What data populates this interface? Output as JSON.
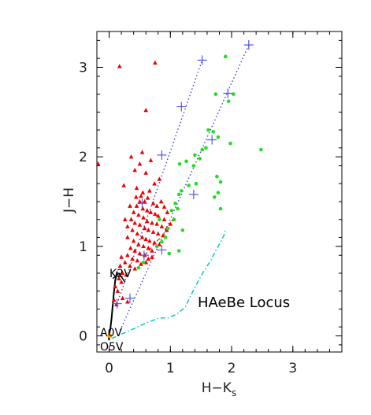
{
  "chart_data": {
    "type": "scatter",
    "xlabel": "H−K",
    "xlabel_sub": "s",
    "ylabel": "J−H",
    "xlim": [
      -0.2,
      3.8
    ],
    "ylim": [
      -0.18,
      3.4
    ],
    "xticks": [
      0,
      1,
      2,
      3
    ],
    "yticks": [
      0,
      1,
      2,
      3
    ],
    "xtick_labels": [
      "0",
      "1",
      "2",
      "3"
    ],
    "ytick_labels": [
      "0",
      "1",
      "2",
      "3"
    ],
    "colors": {
      "red_points": "#ee0000",
      "green_points": "#22dd22",
      "reddening_lines": "#3333cc",
      "plus_markers": "#5555ee",
      "haebe_locus": "#00cccc",
      "dashed_red": "#cc3333",
      "dwarf_track": "#000000",
      "star_marker": "#ff9900"
    },
    "annotations": {
      "k2v": "K2V",
      "a0v": "A0V",
      "o5v": "O5V",
      "haebe_locus": "HAeBe Locus"
    },
    "series": {
      "red_triangles": [
        [
          -0.18,
          1.92
        ],
        [
          0.17,
          3.01
        ],
        [
          0.6,
          2.52
        ],
        [
          0.75,
          3.05
        ],
        [
          0.54,
          2.05
        ],
        [
          0.36,
          2.0
        ],
        [
          0.5,
          1.92
        ],
        [
          0.68,
          1.96
        ],
        [
          0.42,
          1.85
        ],
        [
          0.6,
          1.82
        ],
        [
          0.82,
          1.75
        ],
        [
          0.74,
          1.7
        ],
        [
          0.24,
          1.68
        ],
        [
          0.45,
          1.65
        ],
        [
          0.55,
          1.6
        ],
        [
          0.66,
          1.62
        ],
        [
          0.52,
          1.56
        ],
        [
          0.58,
          1.5
        ],
        [
          0.63,
          1.54
        ],
        [
          0.5,
          1.5
        ],
        [
          0.72,
          1.48
        ],
        [
          0.78,
          1.45
        ],
        [
          0.85,
          1.5
        ],
        [
          0.9,
          1.44
        ],
        [
          0.45,
          1.45
        ],
        [
          0.55,
          1.42
        ],
        [
          0.62,
          1.4
        ],
        [
          0.68,
          1.38
        ],
        [
          0.75,
          1.36
        ],
        [
          0.8,
          1.34
        ],
        [
          0.9,
          1.3
        ],
        [
          0.4,
          1.38
        ],
        [
          0.48,
          1.35
        ],
        [
          0.56,
          1.32
        ],
        [
          0.62,
          1.28
        ],
        [
          0.7,
          1.26
        ],
        [
          0.78,
          1.25
        ],
        [
          0.86,
          1.22
        ],
        [
          0.94,
          1.2
        ],
        [
          0.36,
          1.3
        ],
        [
          0.42,
          1.26
        ],
        [
          0.5,
          1.24
        ],
        [
          0.58,
          1.2
        ],
        [
          0.64,
          1.18
        ],
        [
          0.72,
          1.16
        ],
        [
          0.8,
          1.14
        ],
        [
          0.88,
          1.12
        ],
        [
          0.38,
          1.18
        ],
        [
          0.46,
          1.14
        ],
        [
          0.54,
          1.1
        ],
        [
          0.6,
          1.08
        ],
        [
          0.66,
          1.06
        ],
        [
          0.74,
          1.04
        ],
        [
          0.82,
          1.02
        ],
        [
          0.3,
          1.1
        ],
        [
          0.4,
          1.06
        ],
        [
          0.48,
          1.02
        ],
        [
          0.56,
          1.0
        ],
        [
          0.64,
          0.98
        ],
        [
          0.7,
          0.95
        ],
        [
          0.35,
          0.98
        ],
        [
          0.42,
          0.95
        ],
        [
          0.5,
          0.92
        ],
        [
          0.58,
          0.9
        ],
        [
          0.3,
          0.9
        ],
        [
          0.38,
          0.86
        ],
        [
          0.46,
          0.84
        ],
        [
          0.52,
          0.8
        ],
        [
          0.26,
          0.82
        ],
        [
          0.34,
          0.78
        ],
        [
          0.42,
          0.75
        ],
        [
          0.2,
          0.88
        ],
        [
          0.18,
          0.78
        ],
        [
          0.22,
          0.7
        ],
        [
          0.28,
          0.68
        ],
        [
          0.16,
          0.64
        ],
        [
          0.2,
          0.6
        ],
        [
          0.1,
          0.55
        ],
        [
          0.14,
          0.5
        ],
        [
          0.08,
          0.4
        ],
        [
          0.22,
          0.42
        ],
        [
          0.3,
          0.38
        ],
        [
          0.12,
          0.35
        ],
        [
          0.6,
          0.82
        ],
        [
          0.64,
          0.86
        ],
        [
          0.7,
          0.88
        ],
        [
          0.94,
          1.18
        ],
        [
          1.0,
          1.25
        ],
        [
          1.05,
          1.3
        ],
        [
          0.95,
          1.38
        ],
        [
          0.3,
          1.22
        ],
        [
          0.26,
          1.3
        ],
        [
          0.34,
          1.45
        ],
        [
          0.44,
          1.55
        ]
      ],
      "green_circles": [
        [
          1.9,
          3.12
        ],
        [
          1.74,
          2.7
        ],
        [
          2.03,
          2.7
        ],
        [
          1.95,
          2.62
        ],
        [
          1.62,
          2.3
        ],
        [
          1.7,
          2.28
        ],
        [
          1.78,
          2.22
        ],
        [
          1.98,
          2.15
        ],
        [
          1.58,
          2.1
        ],
        [
          1.52,
          2.08
        ],
        [
          1.4,
          2.02
        ],
        [
          1.48,
          1.98
        ],
        [
          1.38,
          1.9
        ],
        [
          1.26,
          1.95
        ],
        [
          1.15,
          1.92
        ],
        [
          2.48,
          2.08
        ],
        [
          1.76,
          1.78
        ],
        [
          1.82,
          1.72
        ],
        [
          1.3,
          1.68
        ],
        [
          1.42,
          1.7
        ],
        [
          1.18,
          1.62
        ],
        [
          1.14,
          1.58
        ],
        [
          1.78,
          1.6
        ],
        [
          1.72,
          1.55
        ],
        [
          1.08,
          1.48
        ],
        [
          1.02,
          1.4
        ],
        [
          1.12,
          1.42
        ],
        [
          1.06,
          1.3
        ],
        [
          0.82,
          1.3
        ],
        [
          0.96,
          1.2
        ],
        [
          1.2,
          1.18
        ],
        [
          0.92,
          1.1
        ],
        [
          0.86,
          1.05
        ],
        [
          0.78,
          1.0
        ],
        [
          1.82,
          1.42
        ],
        [
          1.14,
          0.95
        ],
        [
          0.98,
          0.92
        ],
        [
          0.56,
          0.82
        ],
        [
          0.48,
          0.76
        ]
      ],
      "reddening_line_left": [
        [
          0.13,
          0.36
        ],
        [
          1.52,
          3.08
        ]
      ],
      "reddening_line_right": [
        [
          0.18,
          0.06
        ],
        [
          2.28,
          3.25
        ]
      ],
      "plus_markers": [
        [
          0.13,
          0.36
        ],
        [
          0.57,
          0.9
        ],
        [
          0.54,
          1.48
        ],
        [
          0.86,
          2.02
        ],
        [
          1.18,
          2.56
        ],
        [
          1.52,
          3.08
        ],
        [
          0.34,
          0.42
        ],
        [
          0.86,
          0.96
        ],
        [
          1.38,
          1.58
        ],
        [
          1.68,
          2.19
        ],
        [
          1.94,
          2.71
        ],
        [
          2.28,
          3.25
        ]
      ],
      "haebe_locus": [
        [
          0.04,
          -0.03
        ],
        [
          0.2,
          0.02
        ],
        [
          0.4,
          0.08
        ],
        [
          0.62,
          0.15
        ],
        [
          0.82,
          0.2
        ],
        [
          0.96,
          0.2
        ],
        [
          1.1,
          0.24
        ],
        [
          1.24,
          0.32
        ],
        [
          1.34,
          0.46
        ],
        [
          1.46,
          0.62
        ],
        [
          1.56,
          0.74
        ],
        [
          1.66,
          0.84
        ],
        [
          1.74,
          0.95
        ],
        [
          1.82,
          1.05
        ],
        [
          1.88,
          1.13
        ],
        [
          1.9,
          1.2
        ]
      ],
      "dashed_red_track": [
        [
          0.58,
          0.9
        ],
        [
          0.66,
          0.96
        ],
        [
          0.78,
          1.06
        ],
        [
          0.88,
          1.12
        ],
        [
          0.94,
          1.15
        ]
      ],
      "dwarf_track": [
        [
          0.0,
          -0.05
        ],
        [
          -0.01,
          0.0
        ],
        [
          0.0,
          0.02
        ],
        [
          0.02,
          0.08
        ],
        [
          0.04,
          0.2
        ],
        [
          0.06,
          0.35
        ],
        [
          0.08,
          0.5
        ],
        [
          0.1,
          0.62
        ],
        [
          0.12,
          0.68
        ],
        [
          0.13,
          0.72
        ]
      ],
      "k2v_bend": [
        [
          0.06,
          0.64
        ],
        [
          0.16,
          0.7
        ],
        [
          0.26,
          0.6
        ]
      ],
      "star_markers": [
        [
          0.0,
          0.0
        ],
        [
          0.02,
          0.0
        ]
      ]
    }
  }
}
